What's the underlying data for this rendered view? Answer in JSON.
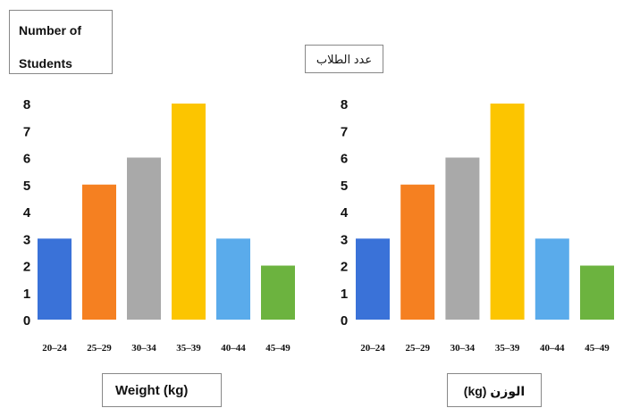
{
  "labels": {
    "ylabel_en_line1": "Number of",
    "ylabel_en_line2": "Students",
    "ylabel_ar": "عدد الطلاب",
    "xlabel_en": "Weight (kg)",
    "xlabel_ar": "الوزن (kg)"
  },
  "chart_data": [
    {
      "type": "bar",
      "categories": [
        "20-24",
        "25-29",
        "30-34",
        "35-39",
        "40-44",
        "45-49"
      ],
      "values": [
        3,
        5,
        6,
        8,
        3,
        2
      ],
      "colors": [
        "#3a72d8",
        "#f58021",
        "#a9a9a9",
        "#fcc500",
        "#5aabeb",
        "#6cb33f"
      ],
      "xlabel": "Weight (kg)",
      "ylabel": "Number of Students",
      "yticks": [
        0,
        1,
        2,
        3,
        4,
        5,
        6,
        7,
        8
      ],
      "ylim": [
        0,
        8
      ],
      "grid": false
    },
    {
      "type": "bar",
      "categories": [
        "20-24",
        "25-29",
        "30-34",
        "35-39",
        "40-44",
        "45-49"
      ],
      "values": [
        3,
        5,
        6,
        8,
        3,
        2
      ],
      "colors": [
        "#3a72d8",
        "#f58021",
        "#a9a9a9",
        "#fcc500",
        "#5aabeb",
        "#6cb33f"
      ],
      "xlabel": "الوزن (kg)",
      "ylabel": "عدد الطلاب",
      "yticks": [
        0,
        1,
        2,
        3,
        4,
        5,
        6,
        7,
        8
      ],
      "ylim": [
        0,
        8
      ],
      "grid": false
    }
  ]
}
